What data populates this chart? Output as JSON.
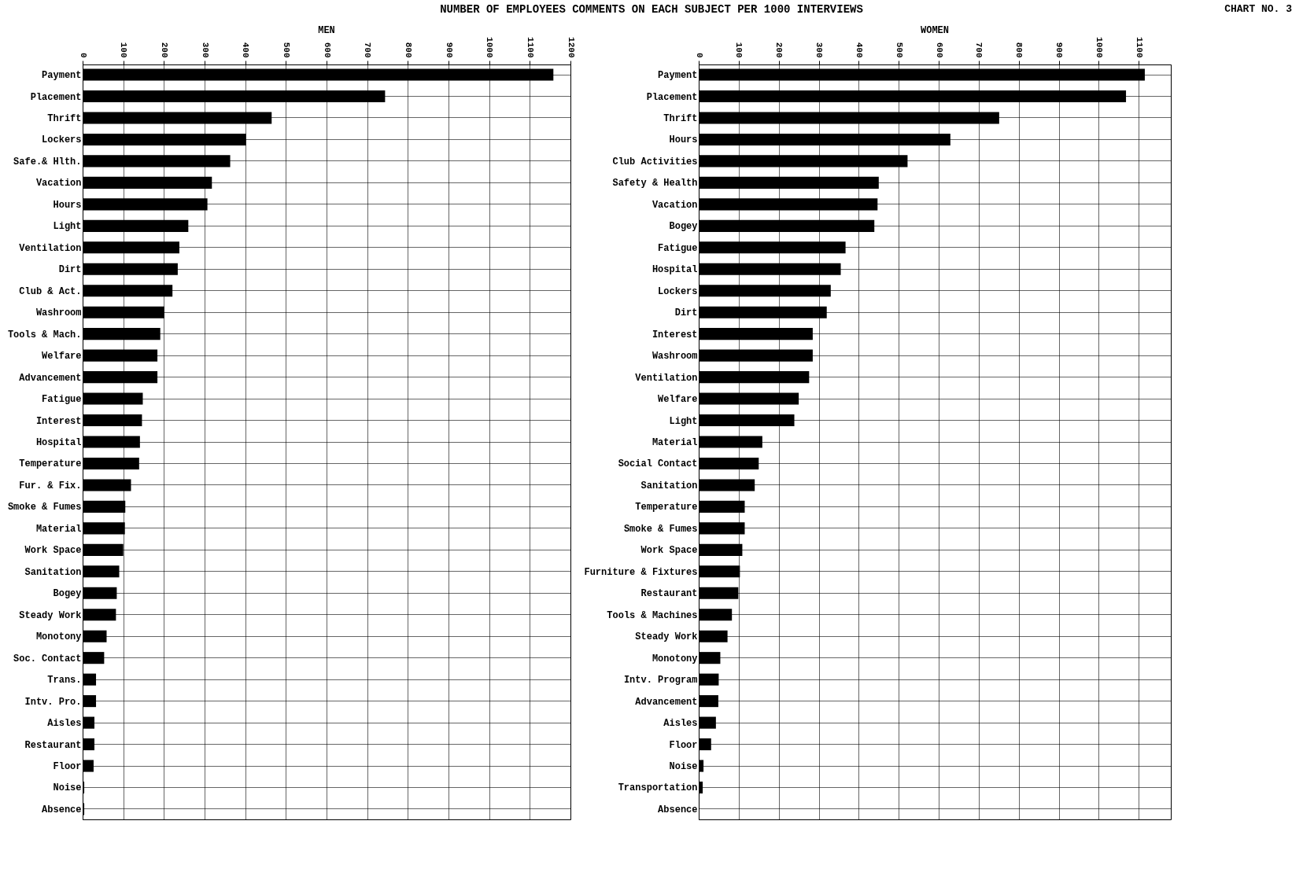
{
  "chart_data": [
    {
      "type": "bar",
      "title": "NUMBER OF EMPLOYEES COMMENTS ON EACH SUBJECT PER 1000 INTERVIEWS",
      "subtitle": "MEN",
      "orientation": "horizontal",
      "grid": true,
      "categories": [
        "Payment",
        "Placement",
        "Thrift",
        "Lockers",
        "Safe.& Hlth.",
        "Vacation",
        "Hours",
        "Light",
        "Ventilation",
        "Dirt",
        "Club & Act.",
        "Washroom",
        "Tools & Mach.",
        "Welfare",
        "Advancement",
        "Fatigue",
        "Interest",
        "Hospital",
        "Temperature",
        "Fur. & Fix.",
        "Smoke & Fumes",
        "Material",
        "Work Space",
        "Sanitation",
        "Bogey",
        "Steady Work",
        "Monotony",
        "Soc. Contact",
        "Trans.",
        "Intv. Pro.",
        "Aisles",
        "Restaurant",
        "Floor",
        "Noise",
        "Absence"
      ],
      "values": [
        1158,
        744,
        465,
        402,
        363,
        318,
        307,
        260,
        238,
        234,
        221,
        201,
        191,
        184,
        184,
        148,
        146,
        141,
        139,
        119,
        105,
        104,
        100,
        90,
        84,
        82,
        59,
        53,
        33,
        33,
        29,
        29,
        27,
        4,
        4
      ],
      "color": "#000000",
      "xlim": [
        0,
        1200
      ],
      "xticks": [
        0,
        100,
        200,
        300,
        400,
        500,
        600,
        700,
        800,
        900,
        1000,
        1100,
        1200
      ]
    },
    {
      "type": "bar",
      "subtitle": "WOMEN",
      "orientation": "horizontal",
      "grid": true,
      "annotations": [
        "CHART NO. 3"
      ],
      "categories": [
        "Payment",
        "Placement",
        "Thrift",
        "Hours",
        "Club Activities",
        "Safety & Health",
        "Vacation",
        "Bogey",
        "Fatigue",
        "Hospital",
        "Lockers",
        "Dirt",
        "Interest",
        "Washroom",
        "Ventilation",
        "Welfare",
        "Light",
        "Material",
        "Social Contact",
        "Sanitation",
        "Temperature",
        "Smoke & Fumes",
        "Work Space",
        "Furniture & Fixtures",
        "Restaurant",
        "Tools & Machines",
        "Steady Work",
        "Monotony",
        "Intv. Program",
        "Advancement",
        "Aisles",
        "Floor",
        "Noise",
        "Transportation",
        "Absence"
      ],
      "values": [
        1115,
        1068,
        751,
        629,
        522,
        450,
        447,
        439,
        367,
        355,
        330,
        320,
        285,
        285,
        276,
        250,
        239,
        159,
        150,
        140,
        115,
        115,
        109,
        103,
        99,
        83,
        72,
        54,
        50,
        49,
        43,
        31,
        12,
        10,
        1
      ],
      "color": "#000000",
      "xlim": [
        0,
        1180
      ],
      "xticks": [
        0,
        100,
        200,
        300,
        400,
        500,
        600,
        700,
        800,
        900,
        1000,
        1100
      ]
    }
  ]
}
